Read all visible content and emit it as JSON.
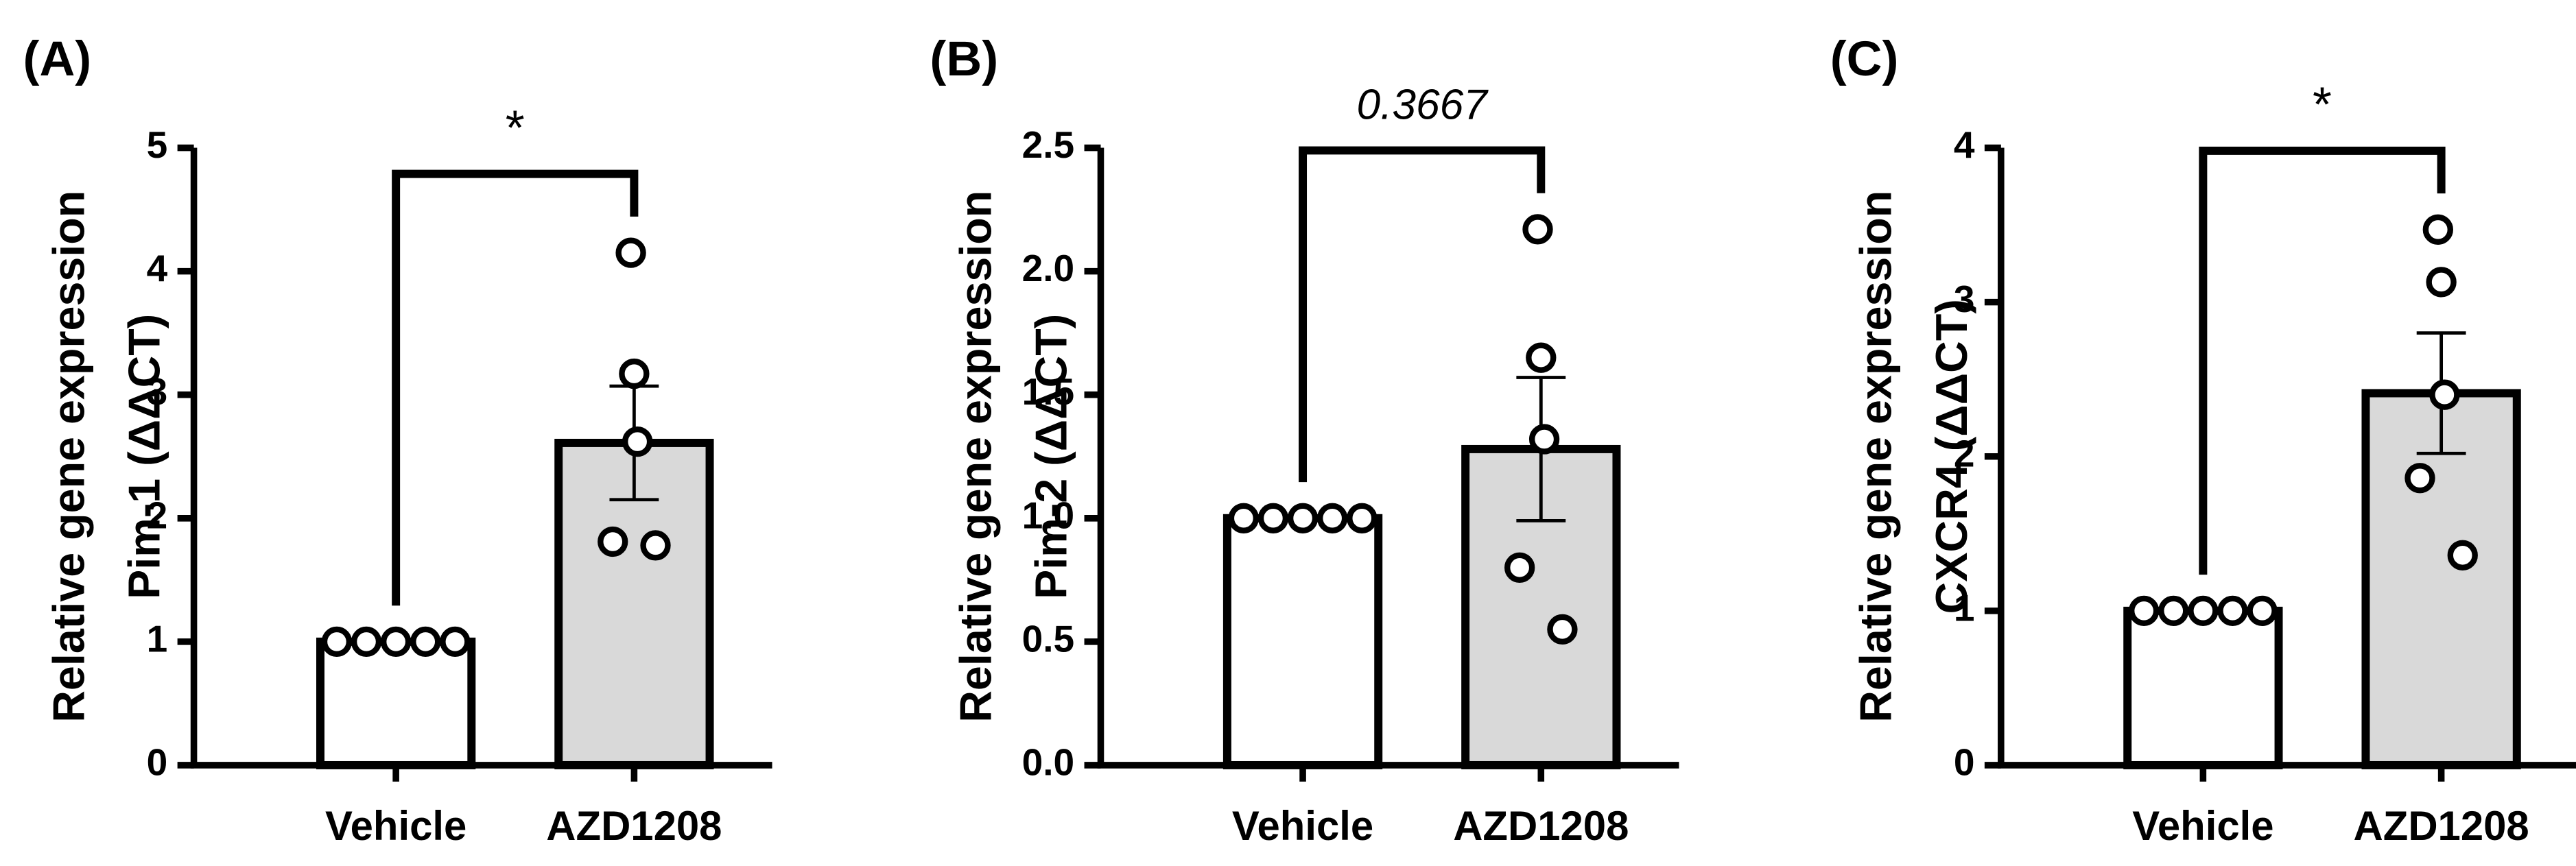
{
  "chart_data": [
    {
      "type": "bar",
      "label": "(A)",
      "ylabel": [
        "Relative gene expression",
        "Pim-1 (ΔΔCT)"
      ],
      "categories": [
        "Vehicle",
        "AZD1208"
      ],
      "values": [
        1,
        2.61
      ],
      "errors": [
        0,
        0.46
      ],
      "points": [
        [
          1,
          1,
          1,
          1,
          1
        ],
        [
          4.15,
          3.17,
          2.62,
          1.81,
          1.78
        ]
      ],
      "colors": [
        "#ffffff",
        "#d9d9d9"
      ],
      "ylim": [
        0,
        5
      ],
      "yticks": [
        0,
        1,
        2,
        3,
        4,
        5
      ],
      "annotation": "*",
      "annotation_style": "normal"
    },
    {
      "type": "bar",
      "label": "(B)",
      "ylabel": [
        "Relative gene expression",
        "Pim-2 (ΔΔCT)"
      ],
      "categories": [
        "Vehicle",
        "AZD1208"
      ],
      "values": [
        1,
        1.28
      ],
      "errors": [
        0,
        0.29
      ],
      "points": [
        [
          1,
          1,
          1,
          1,
          1
        ],
        [
          2.17,
          1.65,
          1.32,
          0.8,
          0.55
        ]
      ],
      "colors": [
        "#ffffff",
        "#d9d9d9"
      ],
      "ylim": [
        0,
        2.5
      ],
      "yticks": [
        {
          "value": 0,
          "label": "0.0"
        },
        0.5,
        {
          "value": 1,
          "label": "1.0"
        },
        1.5,
        {
          "value": 2,
          "label": "2.0"
        },
        2.5
      ],
      "annotation": "0.3667",
      "annotation_style": "italic"
    },
    {
      "type": "bar",
      "label": "(C)",
      "ylabel": [
        "Relative gene expression",
        "CXCR4 (ΔΔCT)"
      ],
      "categories": [
        "Vehicle",
        "AZD1208"
      ],
      "values": [
        1,
        2.41
      ],
      "errors": [
        0,
        0.39
      ],
      "points": [
        [
          1,
          1,
          1,
          1,
          1
        ],
        [
          3.47,
          3.13,
          2.4,
          1.86,
          1.36
        ]
      ],
      "colors": [
        "#ffffff",
        "#d9d9d9"
      ],
      "ylim": [
        0,
        4
      ],
      "yticks": [
        0,
        1,
        2,
        3,
        4
      ],
      "annotation": "*",
      "annotation_style": "normal"
    }
  ]
}
